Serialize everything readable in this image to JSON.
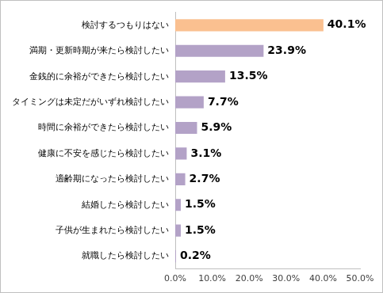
{
  "chart_data": {
    "type": "bar",
    "orientation": "horizontal",
    "categories": [
      "検討するつもりはない",
      "満期・更新時期が来たら検討したい",
      "金銭的に余裕ができたら検討したい",
      "タイミングは未定だがいずれ検討したい",
      "時間に余裕ができたら検討したい",
      "健康に不安を感じたら検討したい",
      "適齢期になったら検討したい",
      "結婚したら検討したい",
      "子供が生まれたら検討したい",
      "就職したら検討したい"
    ],
    "values": [
      40.1,
      23.9,
      13.5,
      7.7,
      5.9,
      3.1,
      2.7,
      1.5,
      1.5,
      0.2
    ],
    "value_labels": [
      "40.1%",
      "23.9%",
      "13.5%",
      "7.7%",
      "5.9%",
      "3.1%",
      "2.7%",
      "1.5%",
      "1.5%",
      "0.2%"
    ],
    "colors": [
      "#fac090",
      "#b3a2c7",
      "#b3a2c7",
      "#b3a2c7",
      "#b3a2c7",
      "#b3a2c7",
      "#b3a2c7",
      "#b3a2c7",
      "#b3a2c7",
      "#b3a2c7"
    ],
    "xlim": [
      0,
      50
    ],
    "xticks": [
      {
        "value": 0,
        "label": "0.0%"
      },
      {
        "value": 10,
        "label": "10.0%"
      },
      {
        "value": 20,
        "label": "20.0%"
      },
      {
        "value": 30,
        "label": "30.0%"
      },
      {
        "value": 40,
        "label": "40.0%"
      },
      {
        "value": 50,
        "label": "50.0%"
      }
    ],
    "grid": false,
    "data_labels": true
  }
}
